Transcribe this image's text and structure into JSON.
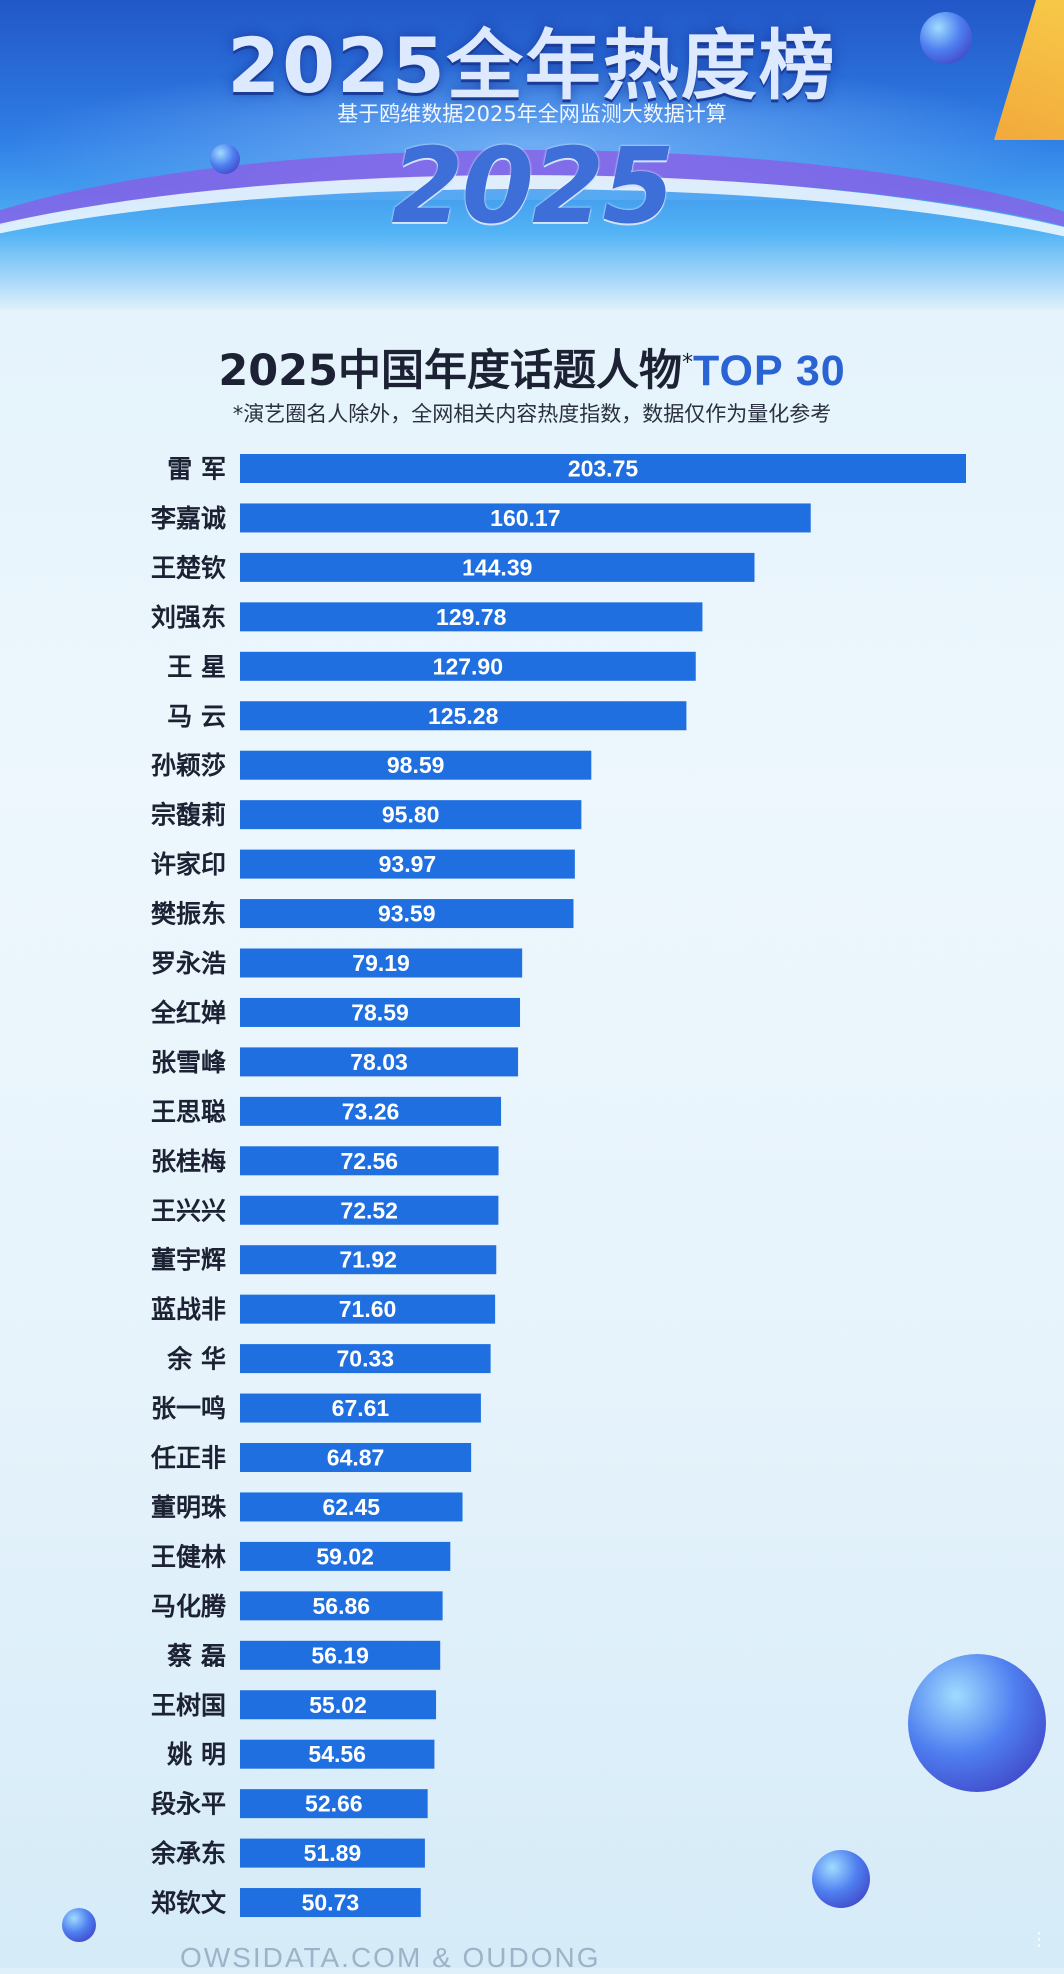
{
  "banner": {
    "title": "2025全年热度榜",
    "subtitle": "基于鸥维数据2025年全网监测大数据计算",
    "year": "2025"
  },
  "chart_data": {
    "type": "bar",
    "orientation": "horizontal",
    "title_main": "2025中国年度话题人物",
    "title_star": "*",
    "title_top": "TOP 30",
    "note": "*演艺圈名人除外，全网相关内容热度指数，数据仅作为量化参考",
    "categories": [
      "雷 军",
      "李嘉诚",
      "王楚钦",
      "刘强东",
      "王 星",
      "马 云",
      "孙颖莎",
      "宗馥莉",
      "许家印",
      "樊振东",
      "罗永浩",
      "全红婵",
      "张雪峰",
      "王思聪",
      "张桂梅",
      "王兴兴",
      "董宇辉",
      "蓝战非",
      "余 华",
      "张一鸣",
      "任正非",
      "董明珠",
      "王健林",
      "马化腾",
      "蔡 磊",
      "王树国",
      "姚 明",
      "段永平",
      "余承东",
      "郑钦文"
    ],
    "values": [
      203.75,
      160.17,
      144.39,
      129.78,
      127.9,
      125.28,
      98.59,
      95.8,
      93.97,
      93.59,
      79.19,
      78.59,
      78.03,
      73.26,
      72.56,
      72.52,
      71.92,
      71.6,
      70.33,
      67.61,
      64.87,
      62.45,
      59.02,
      56.86,
      56.19,
      55.02,
      54.56,
      52.66,
      51.89,
      50.73
    ],
    "labels": [
      "203.75",
      "160.17",
      "144.39",
      "129.78",
      "127.90",
      "125.28",
      "98.59",
      "95.80",
      "93.97",
      "93.59",
      "79.19",
      "78.59",
      "78.03",
      "73.26",
      "72.56",
      "72.52",
      "71.92",
      "71.60",
      "70.33",
      "67.61",
      "64.87",
      "62.45",
      "59.02",
      "56.86",
      "56.19",
      "55.02",
      "54.56",
      "52.66",
      "51.89",
      "50.73"
    ],
    "bar_color": "#1f6fe0",
    "label_color": "#ffffff",
    "grid": false,
    "legend": "none"
  },
  "footer": {
    "text": "OWSIDATA.COM & OUDONG"
  },
  "icons": {
    "comment": "comment-icon"
  },
  "colors": {
    "accent": "#2a63d3",
    "bar": "#1f6fe0"
  }
}
